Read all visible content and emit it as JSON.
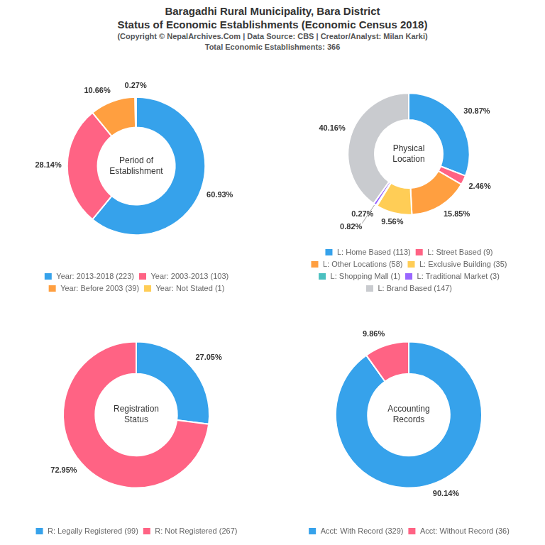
{
  "title": [
    "Baragadhi Rural Municipality, Bara District",
    "Status of Economic Establishments (Economic Census 2018)"
  ],
  "subtitle": [
    "(Copyright © NepalArchives.Com | Data Source: CBS | Creator/Analyst: Milan Karki)",
    "Total Economic Establishments: 366"
  ],
  "chart_data": [
    {
      "type": "doughnut",
      "title": "Period of\nEstablishment",
      "categories": [
        "Year: 2013-2018 (223)",
        "Year: 2003-2013 (103)",
        "Year: Before 2003 (39)",
        "Year: Not Stated (1)"
      ],
      "values": [
        60.93,
        28.14,
        10.66,
        0.27
      ],
      "value_labels": [
        "60.93%",
        "28.14%",
        "10.66%",
        "0.27%"
      ],
      "data_labels": true,
      "legend": "bottom"
    },
    {
      "type": "doughnut",
      "title": "Physical\nLocation",
      "categories": [
        "L: Home Based (113)",
        "L: Street Based (9)",
        "L: Other Locations (58)",
        "L: Exclusive Building (35)",
        "L: Shopping Mall (1)",
        "L: Traditional Market (3)",
        "L: Brand Based (147)"
      ],
      "values": [
        30.87,
        2.46,
        15.85,
        9.56,
        0.27,
        0.82,
        40.16
      ],
      "value_labels": [
        "30.87%",
        "2.46%",
        "15.85%",
        "9.56%",
        "0.27%",
        "0.82%",
        "40.16%"
      ],
      "data_labels": true,
      "legend": "bottom"
    },
    {
      "type": "doughnut",
      "title": "Registration\nStatus",
      "categories": [
        "R: Legally Registered (99)",
        "R: Not Registered (267)"
      ],
      "values": [
        27.05,
        72.95
      ],
      "value_labels": [
        "27.05%",
        "72.95%"
      ],
      "data_labels": true,
      "legend": "bottom"
    },
    {
      "type": "doughnut",
      "title": "Accounting\nRecords",
      "categories": [
        "Acct: With Record (329)",
        "Acct: Without Record (36)"
      ],
      "values": [
        90.14,
        9.86
      ],
      "value_labels": [
        "90.14%",
        "9.86%"
      ],
      "data_labels": true,
      "legend": "bottom"
    }
  ]
}
